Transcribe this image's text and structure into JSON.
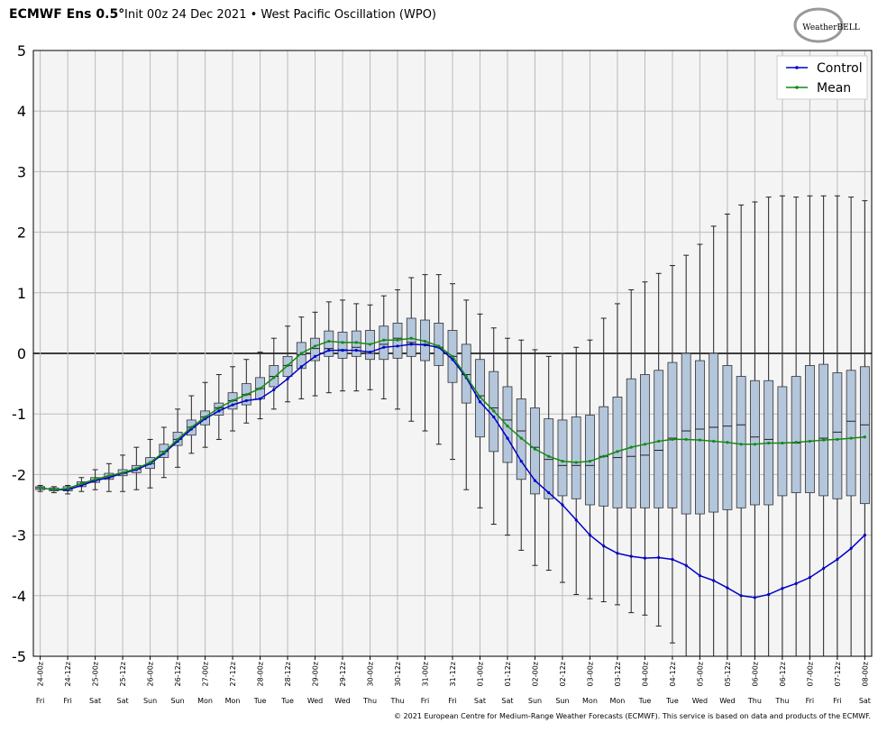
{
  "chart_data": {
    "type": "box",
    "title": "ECMWF Ens 0.5°",
    "subtitle": "Init 00z 24 Dec 2021 • West Pacific Oscillation (WPO)",
    "logo": "WeatherBELL",
    "credit": "© 2021 European Centre for Medium-Range Weather Forecasts (ECMWF). This service is based on data and products of the ECMWF.",
    "categories": [
      "24-00z",
      null,
      "24-12z",
      null,
      "25-00z",
      null,
      "25-12z",
      null,
      "26-00z",
      null,
      "26-12z",
      null,
      "27-00z",
      null,
      "27-12z",
      null,
      "28-00z",
      null,
      "28-12z",
      null,
      "29-00z",
      null,
      "29-12z",
      null,
      "30-00z",
      null,
      "30-12z",
      null,
      "31-00z",
      null,
      "31-12z",
      null,
      "01-00z",
      null,
      "01-12z",
      null,
      "02-00z",
      null,
      "02-12z",
      null,
      "03-00z",
      null,
      "03-12z",
      null,
      "04-00z",
      null,
      "04-12z",
      null,
      "05-00z",
      null,
      "05-12z",
      null,
      "06-00z",
      null,
      "06-12z",
      null,
      "07-00z",
      null,
      "07-12z",
      null,
      "08-00z"
    ],
    "day_labels": [
      "Fri",
      null,
      "Fri",
      null,
      "Sat",
      null,
      "Sat",
      null,
      "Sun",
      null,
      "Sun",
      null,
      "Mon",
      null,
      "Mon",
      null,
      "Tue",
      null,
      "Tue",
      null,
      "Wed",
      null,
      "Wed",
      null,
      "Thu",
      null,
      "Thu",
      null,
      "Fri",
      null,
      "Fri",
      null,
      "Sat",
      null,
      "Sat",
      null,
      "Sun",
      null,
      "Sun",
      null,
      "Mon",
      null,
      "Mon",
      null,
      "Tue",
      null,
      "Tue",
      null,
      "Wed",
      null,
      "Wed",
      null,
      "Thu",
      null,
      "Thu",
      null,
      "Fri",
      null,
      "Fri",
      null,
      "Sat"
    ],
    "boxes": {
      "color": "#b4c6dc",
      "min": [
        -2.28,
        -2.3,
        -2.32,
        -2.28,
        -2.25,
        -2.28,
        -2.28,
        -2.25,
        -2.22,
        -2.05,
        -1.88,
        -1.65,
        -1.55,
        -1.42,
        -1.28,
        -1.15,
        -1.08,
        -0.92,
        -0.8,
        -0.75,
        -0.7,
        -0.65,
        -0.62,
        -0.62,
        -0.6,
        -0.75,
        -0.92,
        -1.12,
        -1.28,
        -1.5,
        -1.75,
        -2.25,
        -2.55,
        -2.82,
        -3.0,
        -3.25,
        -3.5,
        -3.58,
        -3.78,
        -3.98,
        -4.05,
        -4.1,
        -4.15,
        -4.28,
        -4.32,
        -4.5,
        -4.78,
        -5.3,
        -5.3,
        -5.3,
        -5.3,
        -5.3,
        -5.3,
        -5.3,
        -5.3,
        -5.3,
        -5.3,
        -5.3,
        -5.3,
        -5.3,
        -5.3
      ],
      "q1": [
        -2.25,
        -2.27,
        -2.27,
        -2.2,
        -2.13,
        -2.08,
        -2.02,
        -1.97,
        -1.9,
        -1.72,
        -1.52,
        -1.35,
        -1.18,
        -1.02,
        -0.92,
        -0.85,
        -0.75,
        -0.55,
        -0.38,
        -0.25,
        -0.12,
        -0.05,
        -0.08,
        -0.05,
        -0.1,
        -0.1,
        -0.08,
        -0.05,
        -0.12,
        -0.2,
        -0.48,
        -0.82,
        -1.38,
        -1.62,
        -1.8,
        -2.08,
        -2.32,
        -2.4,
        -2.35,
        -2.4,
        -2.5,
        -2.52,
        -2.55,
        -2.55,
        -2.55,
        -2.55,
        -2.55,
        -2.65,
        -2.65,
        -2.62,
        -2.58,
        -2.55,
        -2.5,
        -2.5,
        -2.35,
        -2.3,
        -2.3,
        -2.35,
        -2.4,
        -2.35,
        -2.48
      ],
      "median": [
        -2.22,
        -2.25,
        -2.24,
        -2.16,
        -2.09,
        -2.03,
        -1.98,
        -1.91,
        -1.82,
        -1.62,
        -1.42,
        -1.22,
        -1.05,
        -0.9,
        -0.78,
        -0.68,
        -0.58,
        -0.38,
        -0.2,
        -0.02,
        0.08,
        0.08,
        0.06,
        0.1,
        0.0,
        0.15,
        0.25,
        0.18,
        0.15,
        0.1,
        -0.05,
        -0.35,
        -0.7,
        -0.9,
        -1.1,
        -1.28,
        -1.55,
        -1.75,
        -1.85,
        -1.85,
        -1.85,
        -1.7,
        -1.72,
        -1.7,
        -1.68,
        -1.6,
        -1.4,
        -1.28,
        -1.25,
        -1.22,
        -1.2,
        -1.18,
        -1.38,
        -1.42,
        -1.48,
        -1.48,
        -1.45,
        -1.4,
        -1.3,
        -1.12,
        -1.18
      ],
      "q3": [
        -2.2,
        -2.22,
        -2.2,
        -2.12,
        -2.05,
        -1.98,
        -1.92,
        -1.85,
        -1.72,
        -1.5,
        -1.3,
        -1.1,
        -0.95,
        -0.82,
        -0.65,
        -0.5,
        -0.4,
        -0.2,
        -0.05,
        0.18,
        0.25,
        0.37,
        0.35,
        0.37,
        0.38,
        0.45,
        0.5,
        0.58,
        0.55,
        0.5,
        0.38,
        0.15,
        -0.1,
        -0.3,
        -0.55,
        -0.75,
        -0.9,
        -1.08,
        -1.1,
        -1.05,
        -1.02,
        -0.88,
        -0.72,
        -0.42,
        -0.35,
        -0.28,
        -0.15,
        0.0,
        -0.12,
        0.0,
        -0.2,
        -0.38,
        -0.45,
        -0.45,
        -0.55,
        -0.38,
        -0.2,
        -0.18,
        -0.32,
        -0.28,
        -0.22
      ],
      "max": [
        -2.18,
        -2.2,
        -2.18,
        -2.05,
        -1.92,
        -1.82,
        -1.68,
        -1.55,
        -1.42,
        -1.22,
        -0.92,
        -0.7,
        -0.48,
        -0.35,
        -0.22,
        -0.1,
        0.02,
        0.25,
        0.45,
        0.6,
        0.68,
        0.85,
        0.88,
        0.82,
        0.8,
        0.95,
        1.05,
        1.25,
        1.3,
        1.3,
        1.15,
        0.88,
        0.65,
        0.42,
        0.25,
        0.22,
        0.06,
        -0.05,
        0.0,
        0.1,
        0.22,
        0.58,
        0.82,
        1.05,
        1.18,
        1.32,
        1.45,
        1.62,
        1.8,
        2.1,
        2.3,
        2.45,
        2.5,
        2.58,
        2.6,
        2.58,
        2.6,
        2.6,
        2.6,
        2.58,
        2.52
      ]
    },
    "series": [
      {
        "name": "Control",
        "color": "#0000cc",
        "values": [
          -2.22,
          -2.25,
          -2.25,
          -2.18,
          -2.1,
          -2.05,
          -1.98,
          -1.92,
          -1.82,
          -1.65,
          -1.45,
          -1.25,
          -1.08,
          -0.95,
          -0.85,
          -0.78,
          -0.75,
          -0.6,
          -0.42,
          -0.22,
          -0.05,
          0.05,
          0.05,
          0.05,
          0.02,
          0.1,
          0.12,
          0.15,
          0.14,
          0.1,
          -0.1,
          -0.4,
          -0.8,
          -1.05,
          -1.4,
          -1.78,
          -2.1,
          -2.3,
          -2.5,
          -2.75,
          -3.0,
          -3.18,
          -3.3,
          -3.35,
          -3.38,
          -3.37,
          -3.4,
          -3.5,
          -3.67,
          -3.75,
          -3.87,
          -4.0,
          -4.03,
          -3.98,
          -3.88,
          -3.8,
          -3.7,
          -3.55,
          -3.4,
          -3.22,
          -3.0
        ]
      },
      {
        "name": "Mean",
        "color": "#138a13",
        "values": [
          -2.22,
          -2.25,
          -2.23,
          -2.15,
          -2.08,
          -2.02,
          -1.97,
          -1.9,
          -1.8,
          -1.63,
          -1.42,
          -1.22,
          -1.05,
          -0.9,
          -0.78,
          -0.68,
          -0.58,
          -0.4,
          -0.2,
          0,
          0.12,
          0.2,
          0.18,
          0.18,
          0.15,
          0.22,
          0.22,
          0.25,
          0.2,
          0.12,
          -0.05,
          -0.38,
          -0.72,
          -0.95,
          -1.2,
          -1.4,
          -1.58,
          -1.7,
          -1.78,
          -1.8,
          -1.78,
          -1.7,
          -1.62,
          -1.55,
          -1.5,
          -1.45,
          -1.42,
          -1.42,
          -1.43,
          -1.45,
          -1.47,
          -1.5,
          -1.5,
          -1.48,
          -1.48,
          -1.47,
          -1.45,
          -1.43,
          -1.42,
          -1.4,
          -1.38
        ]
      }
    ],
    "ylim": [
      -5,
      5
    ],
    "yticks": [
      -5,
      -4,
      -3,
      -2,
      -1,
      0,
      1,
      2,
      3,
      4,
      5
    ],
    "grid": true,
    "legend": "top-right"
  }
}
